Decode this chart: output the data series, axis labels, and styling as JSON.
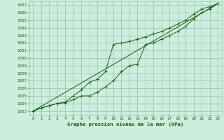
{
  "title": "Graphe pression niveau de la mer (hPa)",
  "bg_color": "#cceedd",
  "grid_color": "#99bbaa",
  "line_color": "#1a5c1a",
  "xlim": [
    -0.5,
    23.5
  ],
  "ylim": [
    1022.5,
    1037.5
  ],
  "yticks": [
    1023,
    1024,
    1025,
    1026,
    1027,
    1028,
    1029,
    1030,
    1031,
    1032,
    1033,
    1034,
    1035,
    1036,
    1037
  ],
  "xticks": [
    0,
    1,
    2,
    3,
    4,
    5,
    6,
    7,
    8,
    9,
    10,
    11,
    12,
    13,
    14,
    15,
    16,
    17,
    18,
    19,
    20,
    21,
    22,
    23
  ],
  "line1_x": [
    0,
    1,
    2,
    3,
    4,
    5,
    6,
    7,
    8,
    9,
    10,
    11,
    12,
    13,
    14,
    15,
    16,
    17,
    18,
    19,
    20,
    21,
    22,
    23
  ],
  "line1_y": [
    1023.0,
    1023.4,
    1023.7,
    1024.0,
    1024.1,
    1024.5,
    1025.0,
    1025.0,
    1025.5,
    1026.2,
    1027.0,
    1028.2,
    1029.0,
    1029.2,
    1031.8,
    1032.0,
    1032.5,
    1033.0,
    1033.5,
    1034.2,
    1035.2,
    1036.0,
    1036.5,
    1037.2
  ],
  "line2_x": [
    0,
    1,
    2,
    3,
    4,
    5,
    6,
    7,
    8,
    9,
    10,
    11,
    12,
    13,
    14,
    15,
    16,
    17,
    18,
    19,
    20,
    21,
    22,
    23
  ],
  "line2_y": [
    1023.0,
    1023.4,
    1023.7,
    1024.0,
    1024.2,
    1025.0,
    1025.8,
    1026.8,
    1027.2,
    1028.2,
    1031.8,
    1032.0,
    1032.2,
    1032.5,
    1032.8,
    1033.2,
    1033.5,
    1034.0,
    1034.5,
    1035.0,
    1035.8,
    1036.5,
    1036.8,
    1037.2
  ],
  "line3_x": [
    0,
    23
  ],
  "line3_y": [
    1023.0,
    1037.2
  ]
}
